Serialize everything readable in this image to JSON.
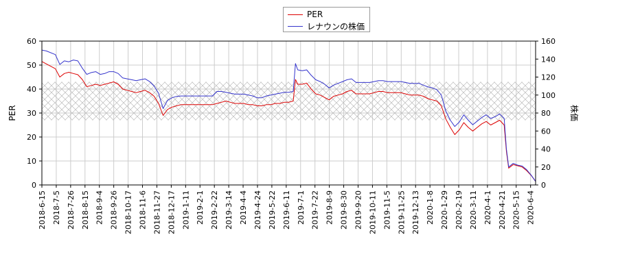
{
  "chart_data": {
    "type": "line",
    "title": "",
    "legend_position": "top-center",
    "grid": true,
    "x_ticks": [
      "2018-6-15",
      "2018-7-5",
      "2018-7-26",
      "2018-8-15",
      "2018-9-4",
      "2018-9-26",
      "2018-10-17",
      "2018-11-6",
      "2018-11-27",
      "2018-12-17",
      "2019-1-11",
      "2019-2-1",
      "2019-2-22",
      "2019-3-14",
      "2019-4-4",
      "2019-4-24",
      "2019-5-22",
      "2019-6-11",
      "2019-7-1",
      "2019-7-22",
      "2019-8-9",
      "2019-8-30",
      "2019-9-20",
      "2019-10-11",
      "2019-11-5",
      "2019-11-25",
      "2019-12-13",
      "2020-1-8",
      "2020-1-29",
      "2020-2-19",
      "2020-3-11",
      "2020-4-1",
      "2020-4-21",
      "2020-5-15",
      "2020-6-4"
    ],
    "y_left": {
      "label": "PER",
      "min": 0,
      "max": 60,
      "ticks": [
        0,
        10,
        20,
        30,
        40,
        50,
        60
      ]
    },
    "y_right": {
      "label": "株価",
      "min": 0,
      "max": 160,
      "ticks": [
        0,
        20,
        40,
        60,
        80,
        100,
        120,
        140,
        160
      ]
    },
    "band": {
      "axis": "left",
      "from": 27,
      "to": 43,
      "pattern": "crosshatch"
    },
    "series": [
      {
        "name": "PER",
        "axis": "left",
        "color": "#dd0000",
        "points": [
          [
            0,
            51.5
          ],
          [
            1,
            50.5
          ],
          [
            3,
            48.5
          ],
          [
            4,
            45
          ],
          [
            5,
            46.5
          ],
          [
            6,
            47
          ],
          [
            7,
            46.5
          ],
          [
            8,
            46
          ],
          [
            9,
            44
          ],
          [
            10,
            41
          ],
          [
            11,
            41.5
          ],
          [
            12,
            42
          ],
          [
            13,
            41.5
          ],
          [
            14,
            42
          ],
          [
            15,
            42.5
          ],
          [
            16,
            43
          ],
          [
            17,
            42
          ],
          [
            18,
            40
          ],
          [
            19,
            39.5
          ],
          [
            20,
            39
          ],
          [
            21,
            38.5
          ],
          [
            22,
            39
          ],
          [
            23,
            39.5
          ],
          [
            24,
            38.5
          ],
          [
            25,
            37
          ],
          [
            26,
            34
          ],
          [
            27,
            29
          ],
          [
            28,
            31.5
          ],
          [
            29,
            32.5
          ],
          [
            30,
            33
          ],
          [
            31,
            33.5
          ],
          [
            32,
            33.5
          ],
          [
            33,
            33.5
          ],
          [
            34,
            33.5
          ],
          [
            35,
            33.5
          ],
          [
            36,
            33.5
          ],
          [
            37,
            33.5
          ],
          [
            38,
            33.5
          ],
          [
            39,
            34
          ],
          [
            40,
            34.5
          ],
          [
            41,
            35
          ],
          [
            42,
            34.5
          ],
          [
            43,
            34
          ],
          [
            44,
            34
          ],
          [
            45,
            34
          ],
          [
            46,
            33.5
          ],
          [
            47,
            33.5
          ],
          [
            48,
            33
          ],
          [
            49,
            33
          ],
          [
            50,
            33.5
          ],
          [
            51,
            33.5
          ],
          [
            52,
            34
          ],
          [
            53,
            34
          ],
          [
            54,
            34.5
          ],
          [
            55,
            34.5
          ],
          [
            56,
            35
          ],
          [
            56.5,
            44
          ],
          [
            57,
            42
          ],
          [
            58,
            42
          ],
          [
            59,
            42.5
          ],
          [
            60,
            40
          ],
          [
            61,
            38
          ],
          [
            62,
            37.5
          ],
          [
            63,
            36.5
          ],
          [
            64,
            35.5
          ],
          [
            65,
            37
          ],
          [
            66,
            37.5
          ],
          [
            67,
            38
          ],
          [
            68,
            39
          ],
          [
            69,
            39.5
          ],
          [
            70,
            38
          ],
          [
            71,
            38
          ],
          [
            72,
            38
          ],
          [
            73,
            38
          ],
          [
            74,
            38.5
          ],
          [
            75,
            39
          ],
          [
            76,
            39
          ],
          [
            77,
            38.5
          ],
          [
            78,
            38.5
          ],
          [
            79,
            38.5
          ],
          [
            80,
            38.5
          ],
          [
            81,
            38
          ],
          [
            82,
            37.5
          ],
          [
            83,
            37.5
          ],
          [
            84,
            37.5
          ],
          [
            85,
            37
          ],
          [
            86,
            36
          ],
          [
            87,
            35.5
          ],
          [
            88,
            35
          ],
          [
            89,
            33
          ],
          [
            90,
            27.5
          ],
          [
            91,
            24
          ],
          [
            92,
            21
          ],
          [
            93,
            23
          ],
          [
            94,
            26
          ],
          [
            95,
            24
          ],
          [
            96,
            22.5
          ],
          [
            97,
            24
          ],
          [
            98,
            25.5
          ],
          [
            99,
            26.5
          ],
          [
            100,
            25
          ],
          [
            101,
            26
          ],
          [
            102,
            27
          ],
          [
            103,
            25
          ],
          [
            103.5,
            14
          ],
          [
            104,
            7
          ],
          [
            105,
            8.5
          ],
          [
            106,
            8
          ],
          [
            107,
            7.5
          ],
          [
            108,
            6
          ],
          [
            109,
            4
          ],
          [
            110,
            1.5
          ]
        ]
      },
      {
        "name": "レナウンの株価",
        "axis": "right",
        "color": "#3333cc",
        "points": [
          [
            0,
            150
          ],
          [
            1,
            149
          ],
          [
            3,
            145
          ],
          [
            4,
            134
          ],
          [
            5,
            138
          ],
          [
            6,
            137
          ],
          [
            7,
            139
          ],
          [
            8,
            138
          ],
          [
            9,
            130
          ],
          [
            10,
            123
          ],
          [
            11,
            125
          ],
          [
            12,
            126
          ],
          [
            13,
            123
          ],
          [
            14,
            124
          ],
          [
            15,
            126
          ],
          [
            16,
            126
          ],
          [
            17,
            124
          ],
          [
            18,
            119
          ],
          [
            19,
            118
          ],
          [
            20,
            117
          ],
          [
            21,
            116
          ],
          [
            22,
            117
          ],
          [
            23,
            118
          ],
          [
            24,
            115
          ],
          [
            25,
            110
          ],
          [
            26,
            102
          ],
          [
            27,
            85
          ],
          [
            28,
            94
          ],
          [
            29,
            97
          ],
          [
            30,
            98.5
          ],
          [
            31,
            99
          ],
          [
            32,
            99
          ],
          [
            33,
            99
          ],
          [
            34,
            99
          ],
          [
            35,
            99
          ],
          [
            36,
            99
          ],
          [
            37,
            99
          ],
          [
            38,
            99
          ],
          [
            39,
            104
          ],
          [
            40,
            104
          ],
          [
            41,
            103
          ],
          [
            42,
            102
          ],
          [
            43,
            101
          ],
          [
            44,
            101
          ],
          [
            45,
            101
          ],
          [
            46,
            100
          ],
          [
            47,
            99
          ],
          [
            48,
            97
          ],
          [
            49,
            97
          ],
          [
            50,
            99
          ],
          [
            51,
            100
          ],
          [
            52,
            101
          ],
          [
            53,
            102
          ],
          [
            54,
            103
          ],
          [
            55,
            103
          ],
          [
            56,
            104
          ],
          [
            56.5,
            135
          ],
          [
            57,
            128
          ],
          [
            58,
            127
          ],
          [
            59,
            128
          ],
          [
            60,
            122
          ],
          [
            61,
            117
          ],
          [
            62,
            115
          ],
          [
            63,
            112
          ],
          [
            64,
            108
          ],
          [
            65,
            111
          ],
          [
            66,
            113
          ],
          [
            67,
            115
          ],
          [
            68,
            117
          ],
          [
            69,
            118
          ],
          [
            70,
            114
          ],
          [
            71,
            114
          ],
          [
            72,
            114
          ],
          [
            73,
            114
          ],
          [
            74,
            115
          ],
          [
            75,
            116
          ],
          [
            76,
            116
          ],
          [
            77,
            115
          ],
          [
            78,
            115
          ],
          [
            79,
            115
          ],
          [
            80,
            115
          ],
          [
            81,
            114
          ],
          [
            82,
            113
          ],
          [
            83,
            113
          ],
          [
            84,
            113
          ],
          [
            85,
            111
          ],
          [
            86,
            109
          ],
          [
            87,
            108
          ],
          [
            88,
            106
          ],
          [
            89,
            100
          ],
          [
            90,
            82
          ],
          [
            91,
            72
          ],
          [
            92,
            65
          ],
          [
            93,
            70
          ],
          [
            94,
            78
          ],
          [
            95,
            72
          ],
          [
            96,
            67
          ],
          [
            97,
            71
          ],
          [
            98,
            75
          ],
          [
            99,
            78
          ],
          [
            100,
            74
          ],
          [
            101,
            76
          ],
          [
            102,
            79
          ],
          [
            103,
            74
          ],
          [
            103.5,
            40
          ],
          [
            104,
            20
          ],
          [
            105,
            24
          ],
          [
            106,
            22
          ],
          [
            107,
            21
          ],
          [
            108,
            17
          ],
          [
            109,
            11
          ],
          [
            110,
            4
          ]
        ]
      }
    ]
  }
}
